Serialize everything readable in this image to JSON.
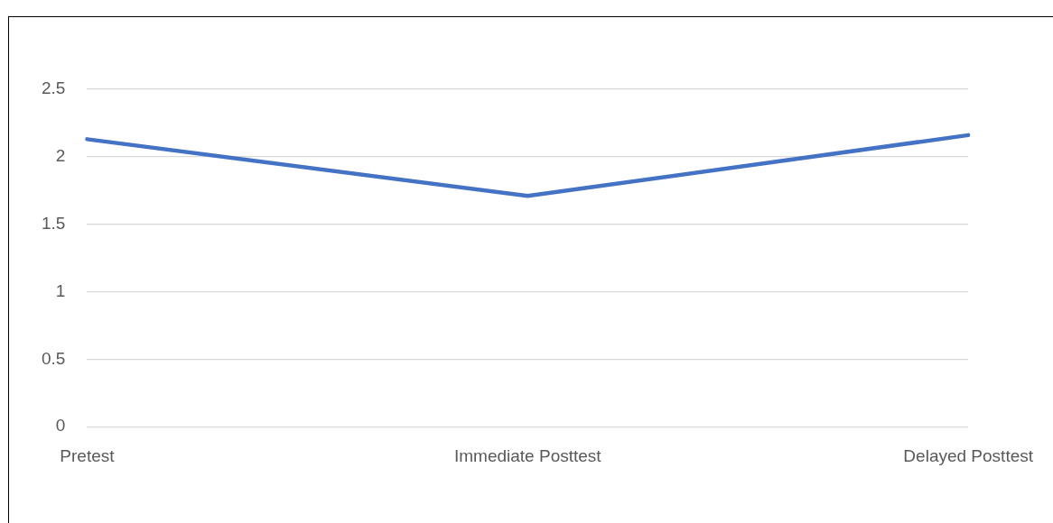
{
  "chart_data": {
    "type": "line",
    "categories": [
      "Pretest",
      "Immediate Posttest",
      "Delayed Posttest"
    ],
    "series": [
      {
        "color": "#4472c4",
        "values": [
          2.13,
          1.71,
          2.16
        ]
      }
    ],
    "ylim": [
      0,
      2.5
    ],
    "yticks": [
      0,
      0.5,
      1,
      1.5,
      2,
      2.5
    ],
    "grid": "y",
    "legend": false,
    "marker": "none"
  }
}
